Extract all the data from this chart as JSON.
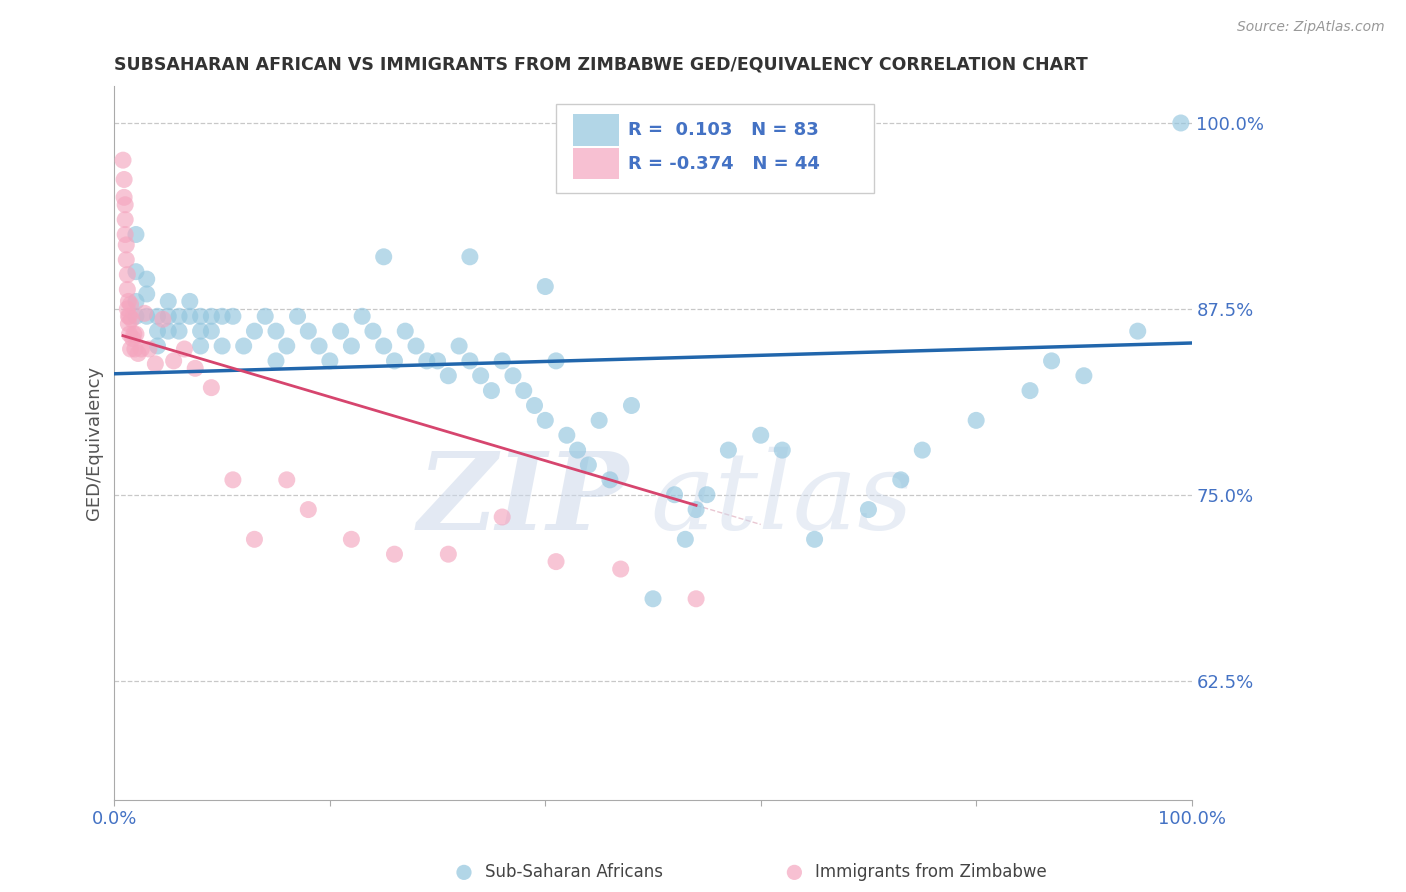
{
  "title": "SUBSAHARAN AFRICAN VS IMMIGRANTS FROM ZIMBABWE GED/EQUIVALENCY CORRELATION CHART",
  "source_text": "Source: ZipAtlas.com",
  "ylabel": "GED/Equivalency",
  "watermark_zip": "ZIP",
  "watermark_atlas": "atlas",
  "xlim": [
    0.0,
    1.0
  ],
  "ylim": [
    0.545,
    1.025
  ],
  "yticks": [
    0.625,
    0.75,
    0.875,
    1.0
  ],
  "ytick_labels": [
    "62.5%",
    "75.0%",
    "87.5%",
    "100.0%"
  ],
  "legend_blue_r": "R =",
  "legend_blue_r_val": "0.103",
  "legend_blue_n": "N = 83",
  "legend_pink_r": "R = -0.374",
  "legend_pink_n": "N = 44",
  "legend_blue_label": "Sub-Saharan Africans",
  "legend_pink_label": "Immigrants from Zimbabwe",
  "blue_color": "#92c5de",
  "pink_color": "#f4a6bf",
  "blue_line_color": "#2166ac",
  "pink_line_color": "#d6456e",
  "axis_label_color": "#4472C4",
  "grid_color": "#c8c8c8",
  "blue_R": 0.103,
  "pink_R": -0.374,
  "blue_scatter_x": [
    0.02,
    0.02,
    0.02,
    0.02,
    0.03,
    0.03,
    0.03,
    0.04,
    0.04,
    0.04,
    0.05,
    0.05,
    0.05,
    0.06,
    0.06,
    0.07,
    0.07,
    0.08,
    0.08,
    0.08,
    0.09,
    0.09,
    0.1,
    0.1,
    0.11,
    0.12,
    0.13,
    0.14,
    0.15,
    0.15,
    0.16,
    0.17,
    0.18,
    0.19,
    0.2,
    0.21,
    0.22,
    0.23,
    0.24,
    0.25,
    0.26,
    0.27,
    0.28,
    0.29,
    0.3,
    0.31,
    0.32,
    0.33,
    0.34,
    0.35,
    0.36,
    0.37,
    0.38,
    0.39,
    0.4,
    0.41,
    0.42,
    0.43,
    0.44,
    0.45,
    0.46,
    0.48,
    0.5,
    0.52,
    0.53,
    0.54,
    0.55,
    0.57,
    0.6,
    0.62,
    0.65,
    0.7,
    0.73,
    0.75,
    0.8,
    0.85,
    0.87,
    0.9,
    0.95,
    0.99,
    0.25,
    0.33,
    0.4
  ],
  "blue_scatter_y": [
    0.925,
    0.9,
    0.88,
    0.87,
    0.87,
    0.885,
    0.895,
    0.87,
    0.86,
    0.85,
    0.87,
    0.88,
    0.86,
    0.87,
    0.86,
    0.88,
    0.87,
    0.86,
    0.87,
    0.85,
    0.86,
    0.87,
    0.87,
    0.85,
    0.87,
    0.85,
    0.86,
    0.87,
    0.86,
    0.84,
    0.85,
    0.87,
    0.86,
    0.85,
    0.84,
    0.86,
    0.85,
    0.87,
    0.86,
    0.85,
    0.84,
    0.86,
    0.85,
    0.84,
    0.84,
    0.83,
    0.85,
    0.84,
    0.83,
    0.82,
    0.84,
    0.83,
    0.82,
    0.81,
    0.8,
    0.84,
    0.79,
    0.78,
    0.77,
    0.8,
    0.76,
    0.81,
    0.68,
    0.75,
    0.72,
    0.74,
    0.75,
    0.78,
    0.79,
    0.78,
    0.72,
    0.74,
    0.76,
    0.78,
    0.8,
    0.82,
    0.84,
    0.83,
    0.86,
    1.0,
    0.91,
    0.91,
    0.89
  ],
  "pink_scatter_x": [
    0.008,
    0.009,
    0.009,
    0.01,
    0.01,
    0.01,
    0.011,
    0.011,
    0.012,
    0.012,
    0.012,
    0.013,
    0.013,
    0.013,
    0.014,
    0.014,
    0.015,
    0.015,
    0.016,
    0.017,
    0.018,
    0.019,
    0.02,
    0.022,
    0.025,
    0.028,
    0.032,
    0.038,
    0.045,
    0.055,
    0.065,
    0.075,
    0.09,
    0.11,
    0.13,
    0.16,
    0.18,
    0.22,
    0.26,
    0.31,
    0.36,
    0.41,
    0.47,
    0.54
  ],
  "pink_scatter_y": [
    0.975,
    0.962,
    0.95,
    0.945,
    0.935,
    0.925,
    0.918,
    0.908,
    0.898,
    0.888,
    0.875,
    0.87,
    0.88,
    0.865,
    0.87,
    0.858,
    0.848,
    0.878,
    0.868,
    0.855,
    0.858,
    0.848,
    0.858,
    0.845,
    0.848,
    0.872,
    0.848,
    0.838,
    0.868,
    0.84,
    0.848,
    0.835,
    0.822,
    0.76,
    0.72,
    0.76,
    0.74,
    0.72,
    0.71,
    0.71,
    0.735,
    0.705,
    0.7,
    0.68
  ]
}
